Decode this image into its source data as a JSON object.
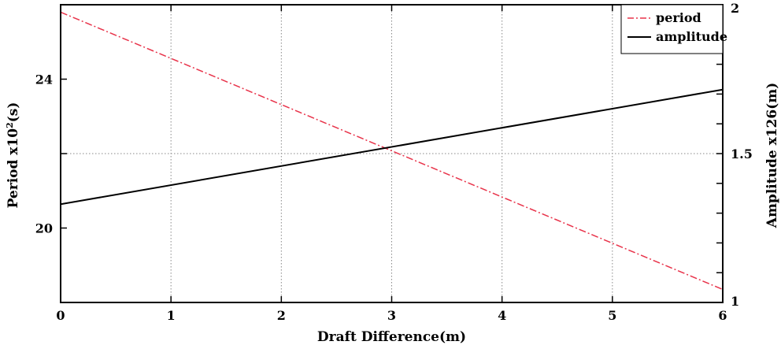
{
  "chart_data": {
    "type": "line",
    "title": "",
    "xlabel": "Draft Difference(m)",
    "ylabel_left_base": "Period x10",
    "ylabel_left_sup": "2",
    "ylabel_left_unit": "(s)",
    "ylabel_right": "Amplitude x126(m)",
    "xlim": [
      0,
      6
    ],
    "ylim_left": [
      18,
      26
    ],
    "ylim_right": [
      1,
      2
    ],
    "x_ticks": [
      0,
      1,
      2,
      3,
      4,
      5,
      6
    ],
    "y_left_ticks": [
      20,
      24
    ],
    "y_right_ticks": [
      1,
      1.5,
      2
    ],
    "grid": true,
    "legend_position": "top-right",
    "series": [
      {
        "name": "period",
        "axis": "left",
        "color": "#e8334a",
        "style": "dash-dot",
        "x": [
          0,
          6
        ],
        "y": [
          25.8,
          18.35
        ]
      },
      {
        "name": "amplitude",
        "axis": "right",
        "color": "#000000",
        "style": "solid",
        "x": [
          0,
          6
        ],
        "y": [
          1.33,
          1.715
        ]
      }
    ]
  }
}
